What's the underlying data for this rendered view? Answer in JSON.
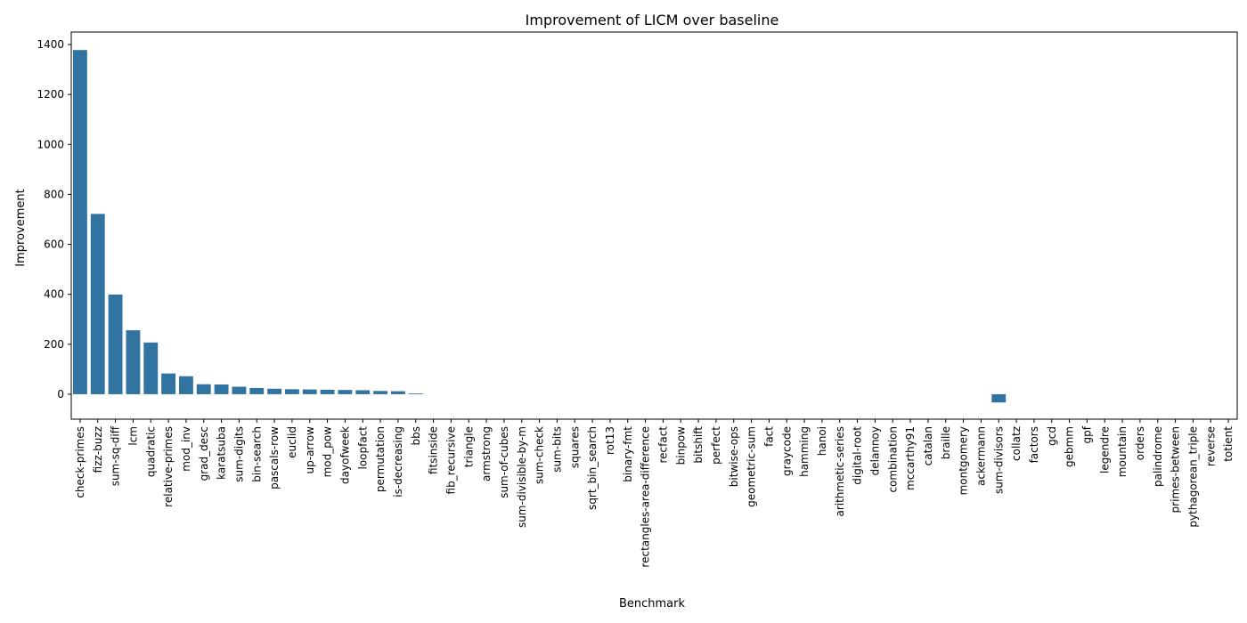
{
  "chart_data": {
    "type": "bar",
    "title": "Improvement of LICM over baseline",
    "xlabel": "Benchmark",
    "ylabel": "Improvement",
    "ylim": [
      -100,
      1450
    ],
    "yticks": [
      0,
      200,
      400,
      600,
      800,
      1000,
      1200,
      1400
    ],
    "grid": false,
    "bar_color": "#3274a1",
    "categories": [
      "check-primes",
      "fizz-buzz",
      "sum-sq-diff",
      "lcm",
      "quadratic",
      "relative-primes",
      "mod_inv",
      "grad_desc",
      "karatsuba",
      "sum-digits",
      "bin-search",
      "pascals-row",
      "euclid",
      "up-arrow",
      "mod_pow",
      "dayofweek",
      "loopfact",
      "permutation",
      "is-decreasing",
      "bbs",
      "fitsinside",
      "fib_recursive",
      "triangle",
      "armstrong",
      "sum-of-cubes",
      "sum-divisible-by-m",
      "sum-check",
      "sum-bits",
      "squares",
      "sqrt_bin_search",
      "rot13",
      "binary-fmt",
      "rectangles-area-difference",
      "recfact",
      "binpow",
      "bitshift",
      "perfect",
      "bitwise-ops",
      "geometric-sum",
      "fact",
      "graycode",
      "hamming",
      "hanoi",
      "arithmetic-series",
      "digital-root",
      "delannoy",
      "combination",
      "mccarthy91",
      "catalan",
      "braille",
      "montgomery",
      "ackermann",
      "sum-divisors",
      "collatz",
      "factors",
      "gcd",
      "gebmm",
      "gpf",
      "legendre",
      "mountain",
      "orders",
      "palindrome",
      "primes-between",
      "pythagorean_triple",
      "reverse",
      "totient"
    ],
    "values": [
      1378,
      722,
      399,
      256,
      207,
      83,
      72,
      40,
      39,
      30,
      25,
      22,
      20,
      19,
      18,
      17,
      16,
      13,
      12,
      3,
      0,
      0,
      0,
      0,
      0,
      0,
      0,
      0,
      0,
      0,
      0,
      0,
      0,
      0,
      0,
      0,
      0,
      0,
      0,
      0,
      0,
      0,
      0,
      0,
      0,
      0,
      0,
      0,
      0,
      0,
      0,
      0,
      -33,
      0,
      0,
      0,
      0,
      0,
      0,
      0,
      0,
      0,
      0,
      0,
      0,
      0
    ]
  }
}
